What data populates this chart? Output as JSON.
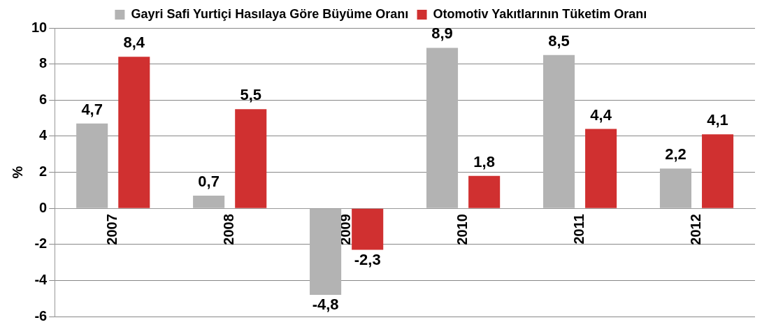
{
  "chart_data": {
    "type": "bar",
    "ylabel": "%",
    "categories": [
      "2007",
      "2008",
      "2009",
      "2010",
      "2011",
      "2012"
    ],
    "series": [
      {
        "name": "Gayri Safi Yurtiçi Hasılaya Göre Büyüme Oranı",
        "color": "#b3b3b3",
        "values": [
          4.7,
          0.7,
          -4.8,
          8.9,
          8.5,
          2.2
        ],
        "value_labels": [
          "4,7",
          "0,7",
          "-4,8",
          "8,9",
          "8,5",
          "2,2"
        ]
      },
      {
        "name": "Otomotiv Yakıtlarının Tüketim Oranı",
        "color": "#d03030",
        "values": [
          8.4,
          5.5,
          -2.3,
          1.8,
          4.4,
          4.1
        ],
        "value_labels": [
          "8,4",
          "5,5",
          "-2,3",
          "1,8",
          "4,4",
          "4,1"
        ]
      }
    ],
    "ylim": [
      -6,
      10
    ],
    "yticks": [
      -6,
      -4,
      -2,
      0,
      2,
      4,
      6,
      8,
      10
    ],
    "grid": "y",
    "legend": "top"
  }
}
